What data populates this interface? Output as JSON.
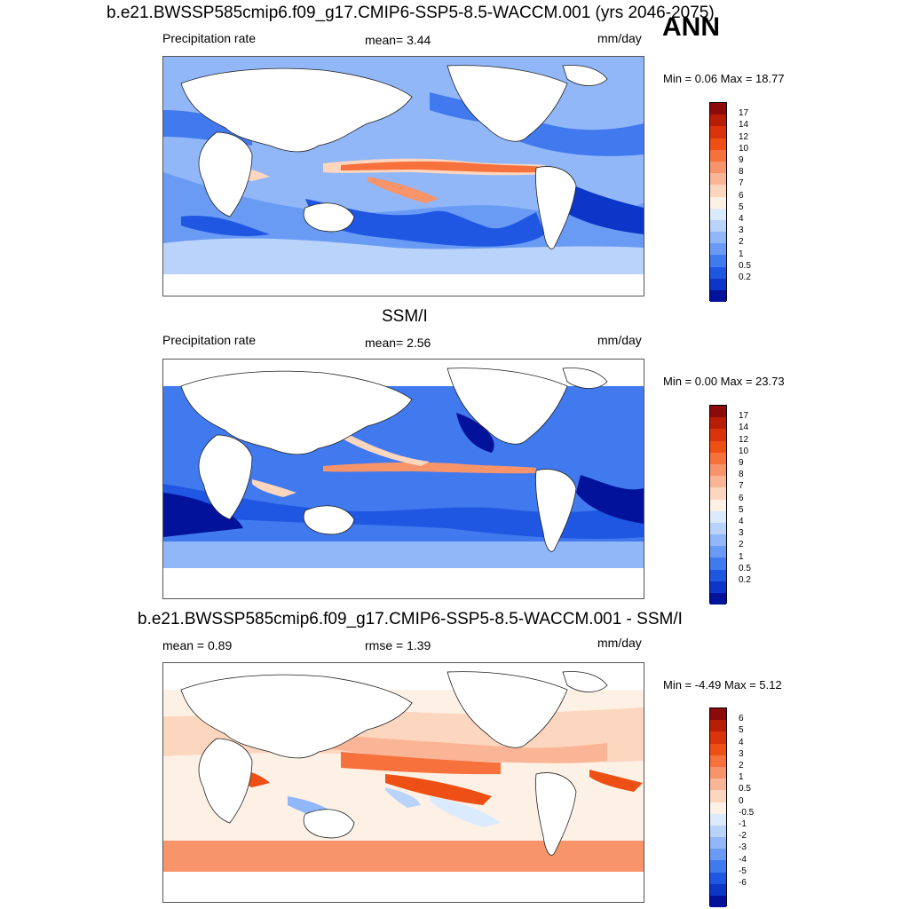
{
  "season": "ANN",
  "panels": [
    {
      "id": "model",
      "title": "b.e21.BWSSP585cmip6.f09_g17.CMIP6-SSP5-8.5-WACCM.001 (yrs 2046-2075)",
      "left_label": "Precipitation rate",
      "mid_label": "mean=   3.44",
      "units": "mm/day",
      "minmax": "Min =   0.06 Max =  18.77",
      "colorbar": {
        "labels": [
          "17",
          "14",
          "12",
          "10",
          "9",
          "8",
          "7",
          "6",
          "5",
          "4",
          "3",
          "2",
          "1",
          "0.5",
          "0.2"
        ],
        "colors": [
          "#8c0a0a",
          "#b81e05",
          "#d8330a",
          "#ee4f14",
          "#f6713c",
          "#f8946a",
          "#fab596",
          "#fcd6bf",
          "#fdf1e6",
          "#dbeafd",
          "#b9d3fb",
          "#91b7f8",
          "#6a9bf4",
          "#4179ee",
          "#1f57e2",
          "#0b36c7",
          "#03129b"
        ]
      },
      "map_theme": "precip"
    },
    {
      "id": "obs",
      "title": "SSM/I",
      "left_label": "Precipitation rate",
      "mid_label": "mean=   2.56",
      "units": "mm/day",
      "minmax": "Min =   0.00 Max =  23.73",
      "colorbar": {
        "labels": [
          "17",
          "14",
          "12",
          "10",
          "9",
          "8",
          "7",
          "6",
          "5",
          "4",
          "3",
          "2",
          "1",
          "0.5",
          "0.2"
        ],
        "colors": [
          "#8c0a0a",
          "#b81e05",
          "#d8330a",
          "#ee4f14",
          "#f6713c",
          "#f8946a",
          "#fab596",
          "#fcd6bf",
          "#fdf1e6",
          "#dbeafd",
          "#b9d3fb",
          "#91b7f8",
          "#6a9bf4",
          "#4179ee",
          "#1f57e2",
          "#0b36c7",
          "#03129b"
        ]
      },
      "map_theme": "obs"
    },
    {
      "id": "diff",
      "title": "b.e21.BWSSP585cmip6.f09_g17.CMIP6-SSP5-8.5-WACCM.001 - SSM/I",
      "left_label": "mean =   0.89",
      "mid_label": "rmse =   1.39",
      "units": "mm/day",
      "minmax": "Min =  -4.49 Max =   5.12",
      "colorbar": {
        "labels": [
          "6",
          "5",
          "4",
          "3",
          "2",
          "1",
          "0.5",
          "0",
          "-0.5",
          "-1",
          "-2",
          "-3",
          "-4",
          "-5",
          "-6"
        ],
        "colors": [
          "#8c0a0a",
          "#b81e05",
          "#d8330a",
          "#ee4f14",
          "#f6713c",
          "#f8946a",
          "#fab596",
          "#fcd6bf",
          "#fdf1e6",
          "#dbeafd",
          "#b9d3fb",
          "#91b7f8",
          "#6a9bf4",
          "#4179ee",
          "#1f57e2",
          "#0b36c7",
          "#03129b"
        ]
      },
      "map_theme": "diff"
    }
  ]
}
